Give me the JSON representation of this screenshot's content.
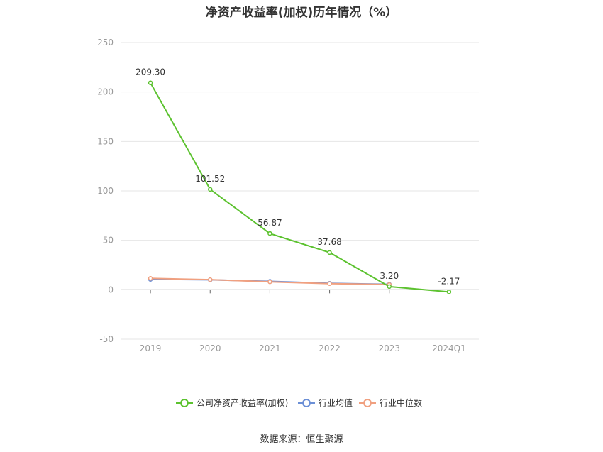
{
  "title": "净资产收益率(加权)历年情况（%）",
  "source": "数据来源：恒生聚源",
  "chart_data": {
    "type": "line",
    "title": "净资产收益率(加权)历年情况（%）",
    "xlabel": "",
    "ylabel": "",
    "categories": [
      "2019",
      "2020",
      "2021",
      "2022",
      "2023",
      "2024Q1"
    ],
    "ylim": [
      -50,
      250
    ],
    "yticks": [
      -50,
      0,
      50,
      100,
      150,
      200,
      250
    ],
    "grid": true,
    "legend_position": "bottom-center",
    "series": [
      {
        "name": "公司净资产收益率(加权)",
        "color": "#5cc22f",
        "values": [
          209.3,
          101.52,
          56.87,
          37.68,
          3.2,
          -2.17
        ],
        "labels": [
          "209.30",
          "101.52",
          "56.87",
          "37.68",
          "3.20",
          "-2.17"
        ]
      },
      {
        "name": "行业均值",
        "color": "#6b8fd6",
        "values": [
          10.5,
          10.0,
          8.5,
          6.5,
          5.5,
          null
        ]
      },
      {
        "name": "行业中位数",
        "color": "#f0a080",
        "values": [
          11.5,
          10.2,
          8.0,
          6.2,
          5.2,
          null
        ]
      }
    ]
  }
}
